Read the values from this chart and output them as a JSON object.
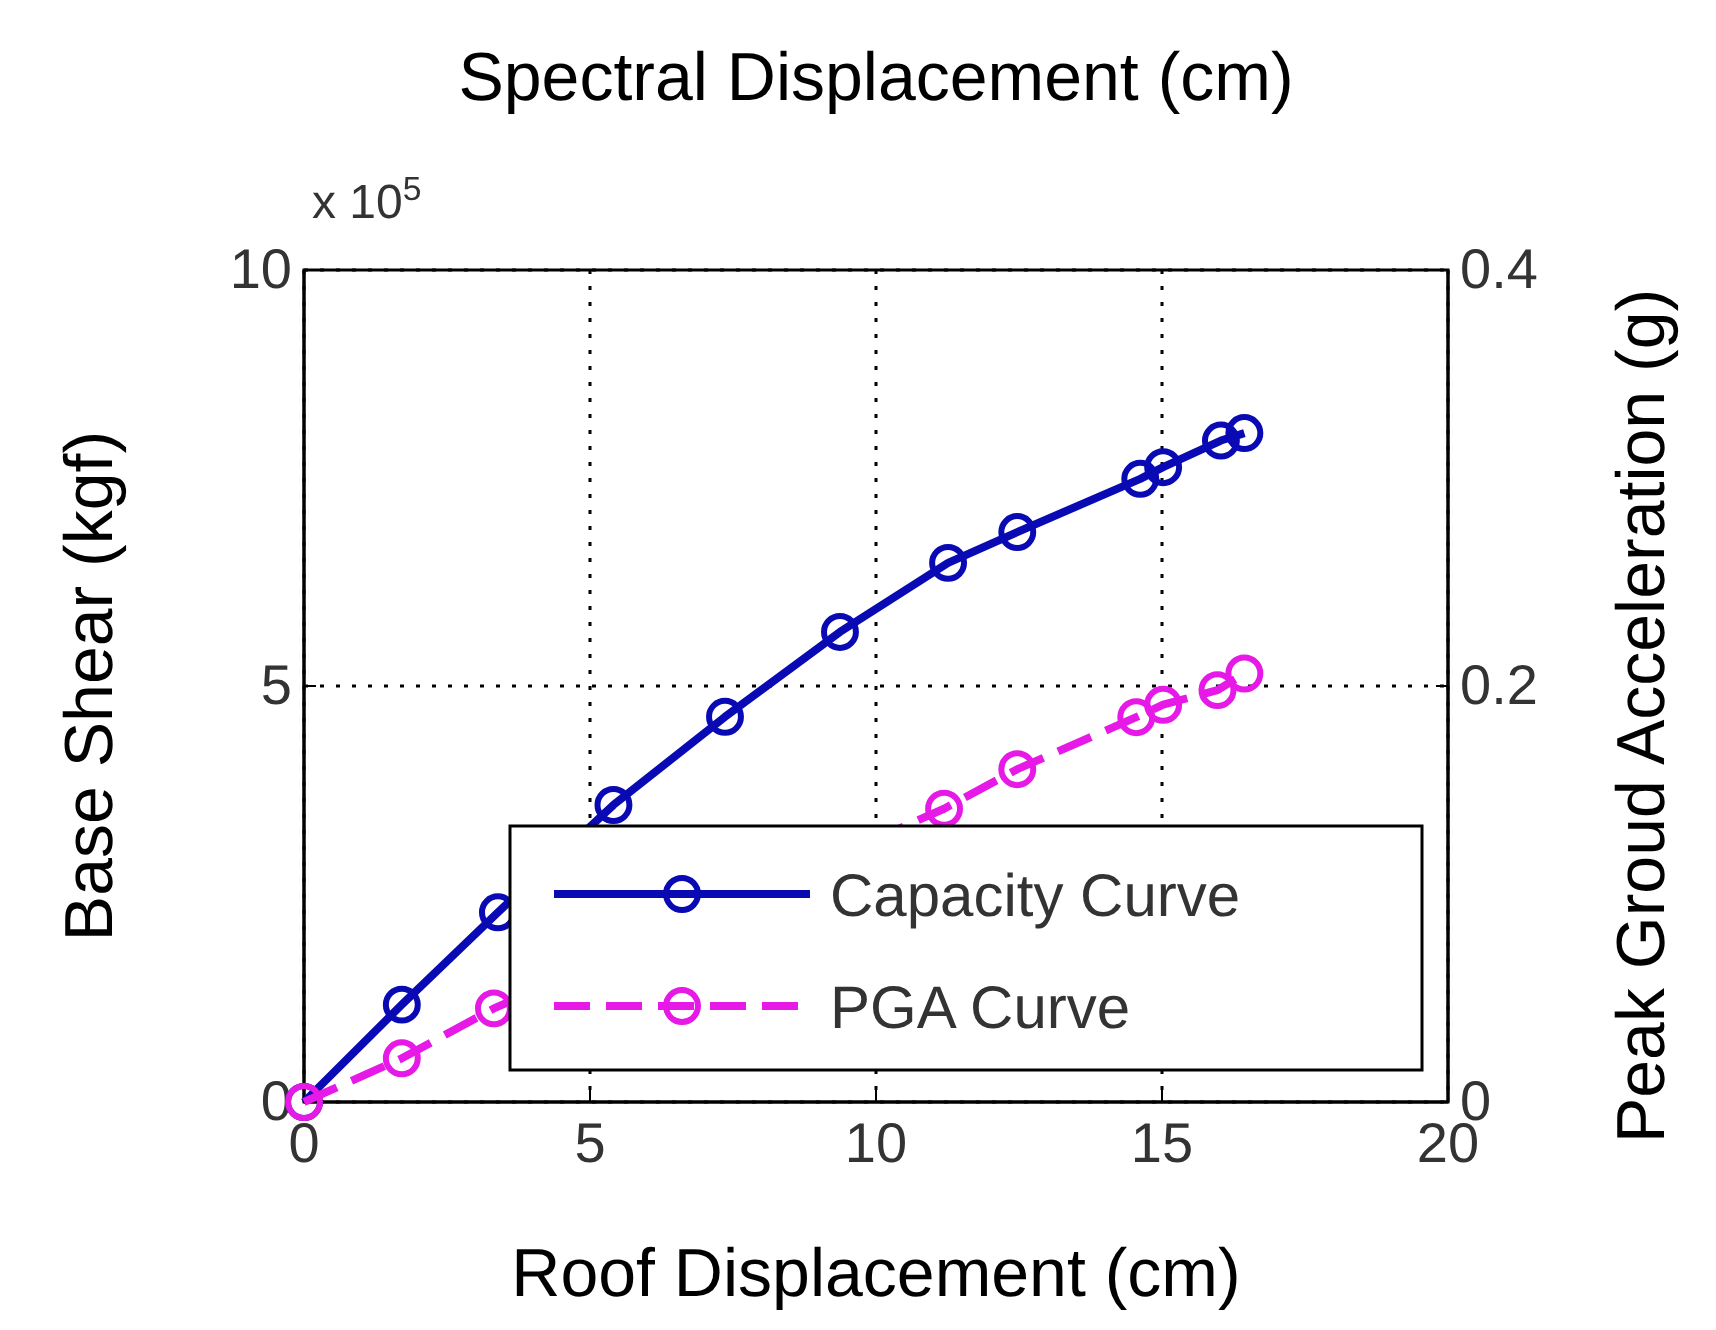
{
  "chart_data": {
    "type": "line",
    "title": "Spectral Displacement (cm)",
    "xlabel": "Roof Displacement (cm)",
    "ylabel": "Base Shear (kgf)",
    "y2label": "Peak Groud Acceleration (g)",
    "annotations": [
      "x 10$^{5}$"
    ],
    "xlim": [
      0,
      20
    ],
    "xticks": [
      0,
      5,
      10,
      15,
      20
    ],
    "ylim": [
      0,
      10
    ],
    "yticks": [
      0,
      5,
      10
    ],
    "y2lim": [
      0,
      0.4
    ],
    "y2ticks": [
      0,
      0.2,
      0.4
    ],
    "grid": true,
    "legend": "bottom right",
    "marker": "circle",
    "series": [
      {
        "name": "Capacity Curve",
        "color": "#0a0ab4",
        "line_style": "solid",
        "x": [
          0,
          1.71,
          3.39,
          5.41,
          7.36,
          9.37,
          11.26,
          12.47,
          14.62,
          15.02,
          16.03,
          16.44
        ],
        "values": [
          0,
          1.17,
          2.28,
          3.57,
          4.63,
          5.65,
          6.48,
          6.85,
          7.49,
          7.63,
          7.95,
          8.04
        ]
      },
      {
        "name": "PGA Curve",
        "color": "#e619e6",
        "line_style": "dashed",
        "axis": "y2",
        "x": [
          0,
          1.71,
          3.32,
          11.19,
          12.47,
          14.55,
          15.02,
          15.97,
          16.44
        ],
        "values": [
          0,
          0.021,
          0.045,
          0.141,
          0.16,
          0.185,
          0.191,
          0.198,
          0.206
        ]
      }
    ]
  }
}
